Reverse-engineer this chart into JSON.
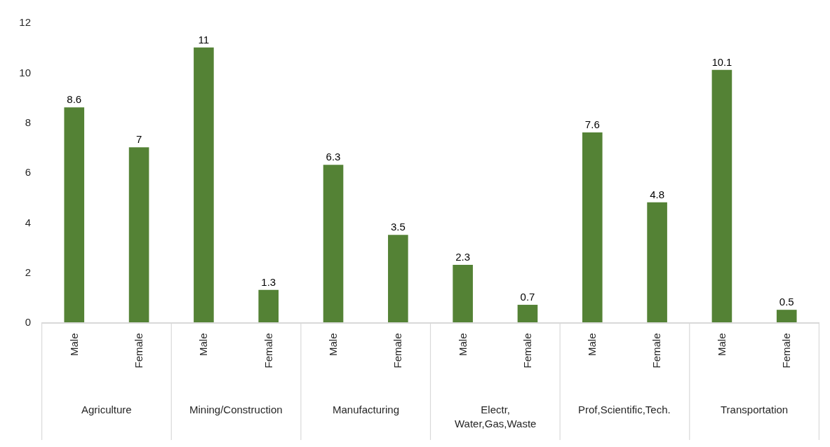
{
  "chart_data": {
    "type": "bar",
    "categories": [
      "Male",
      "Female",
      "Male",
      "Female",
      "Male",
      "Female",
      "Male",
      "Female",
      "Male",
      "Female",
      "Male",
      "Female"
    ],
    "values": [
      8.6,
      7,
      11,
      1.3,
      6.3,
      3.5,
      2.3,
      0.7,
      7.6,
      4.8,
      10.1,
      0.5
    ],
    "color": "#548235",
    "ylim": [
      0,
      12
    ],
    "yticks": [
      0,
      2,
      4,
      6,
      8,
      10,
      12
    ],
    "data_labels": true,
    "annotations": [
      "Agriculture",
      "Mining/Construction",
      "Manufacturing",
      "Electr,\nWater,Gas,Waste",
      "Prof,Scientific,Tech.",
      "Transportation"
    ]
  }
}
